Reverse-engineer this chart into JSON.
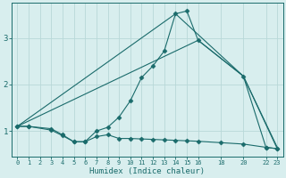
{
  "xlabel": "Humidex (Indice chaleur)",
  "bg_color": "#d8eeee",
  "grid_color": "#b8d8d8",
  "line_color": "#1a6b6b",
  "yticks": [
    1,
    2,
    3
  ],
  "ylim": [
    0.45,
    3.75
  ],
  "xlim": [
    -0.5,
    23.5
  ],
  "xtick_positions": [
    0,
    1,
    2,
    3,
    4,
    5,
    6,
    7,
    8,
    9,
    10,
    11,
    12,
    13,
    14,
    15,
    16,
    18,
    20,
    22,
    23
  ],
  "xtick_labels": [
    "0",
    "1",
    "2",
    "3",
    "4",
    "5",
    "6",
    "7",
    "8",
    "9",
    "10",
    "11",
    "12",
    "13",
    "14",
    "15",
    "16",
    "18",
    "20",
    "22",
    "23"
  ],
  "series": [
    {
      "x": [
        0,
        1,
        3,
        4,
        5,
        6,
        7,
        8,
        9,
        10,
        11,
        12,
        13,
        14,
        15,
        16,
        20,
        22,
        23
      ],
      "y": [
        1.1,
        1.1,
        1.05,
        0.92,
        0.77,
        0.77,
        1.0,
        1.08,
        1.3,
        1.65,
        2.15,
        2.4,
        2.72,
        3.52,
        3.58,
        2.95,
        2.18,
        0.65,
        0.62
      ],
      "marker": true
    },
    {
      "x": [
        0,
        1,
        3,
        4,
        5,
        6,
        7,
        8,
        9,
        10,
        11,
        12,
        13,
        14,
        15,
        16,
        18,
        20,
        22,
        23
      ],
      "y": [
        1.1,
        1.1,
        1.02,
        0.9,
        0.77,
        0.77,
        0.88,
        0.92,
        0.84,
        0.84,
        0.83,
        0.82,
        0.81,
        0.8,
        0.79,
        0.78,
        0.75,
        0.72,
        0.65,
        0.62
      ],
      "marker": true
    },
    {
      "x": [
        0,
        14,
        20,
        23
      ],
      "y": [
        1.1,
        3.52,
        2.18,
        0.65
      ],
      "marker": false
    },
    {
      "x": [
        0,
        16,
        20,
        23
      ],
      "y": [
        1.1,
        2.95,
        2.18,
        0.62
      ],
      "marker": false
    }
  ]
}
